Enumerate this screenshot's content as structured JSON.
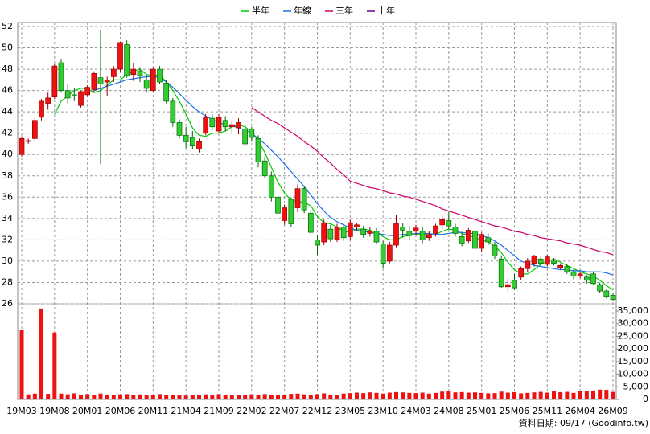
{
  "chart_data": {
    "type": "candlestick",
    "legend_position": "top",
    "grid": true,
    "source": "資料日期: 09/17  (Goodinfo.tw)",
    "categories": [
      "19M03",
      null,
      null,
      null,
      null,
      "19M08",
      null,
      null,
      null,
      null,
      "20M01",
      null,
      null,
      null,
      null,
      "20M06",
      null,
      null,
      null,
      null,
      "20M11",
      null,
      null,
      null,
      null,
      "21M04",
      null,
      null,
      null,
      null,
      "21M09",
      null,
      null,
      null,
      null,
      "22M02",
      null,
      null,
      null,
      null,
      "22M07",
      null,
      null,
      null,
      null,
      "22M12",
      null,
      null,
      null,
      null,
      "23M05",
      null,
      null,
      null,
      null,
      "23M10",
      null,
      null,
      null,
      null,
      "24M03",
      null,
      null,
      null,
      null,
      "24M08",
      null,
      null,
      null,
      null,
      "25M01",
      null,
      null,
      null,
      null,
      "25M06",
      null,
      null,
      null,
      null,
      "25M11",
      null,
      null,
      null,
      null,
      "26M04",
      null,
      null,
      null,
      null,
      "26M09"
    ],
    "ylim": [
      26,
      52
    ],
    "yticks": [
      26,
      28,
      30,
      32,
      34,
      36,
      38,
      40,
      42,
      44,
      46,
      48,
      50,
      52
    ],
    "ohlc": {
      "up_color": "#ee1111",
      "up_border": "#990000",
      "down_color": "#33cc33",
      "down_border": "#006600",
      "open": [
        40,
        41.3,
        41.5,
        43.5,
        44.8,
        45.4,
        48.6,
        46.0,
        45.6,
        44.6,
        45.6,
        46.1,
        47.2,
        46.8,
        47.3,
        48.0,
        50.3,
        47.5,
        47.8,
        47.0,
        46.0,
        48.0,
        46.7,
        45.0,
        43.0,
        41.8,
        41.6,
        40.5,
        42.0,
        43.4,
        42.2,
        43.2,
        42.6,
        42.5,
        42.4,
        42.4,
        41.5,
        39.4,
        38.0,
        36.0,
        33.8,
        35.8,
        35.0,
        36.8,
        34.5,
        32.0,
        31.8,
        33.0,
        32.0,
        33.2,
        32.3,
        33.2,
        33.0,
        32.6,
        32.8,
        31.6,
        30.0,
        31.5,
        33.2,
        32.8,
        32.8,
        32.8,
        32.2,
        32.6,
        33.4,
        33.8,
        33.2,
        32.3,
        31.9,
        32.8,
        31.2,
        32.2,
        31.5,
        30.2,
        27.6,
        28.2,
        28.5,
        29.3,
        29.8,
        30.2,
        29.7,
        30.0,
        29.4,
        29.5,
        29.0,
        28.6,
        28.5,
        28.8,
        27.8,
        27.2,
        26.8
      ],
      "high": [
        41.7,
        41.5,
        43.4,
        45.2,
        45.8,
        48.5,
        48.9,
        46.6,
        46.2,
        46.0,
        46.5,
        47.8,
        51.7,
        47.3,
        48.3,
        50.6,
        50.7,
        48.6,
        48.2,
        47.5,
        48.2,
        48.3,
        47.0,
        45.3,
        43.3,
        42.6,
        42.2,
        41.5,
        43.8,
        43.8,
        43.8,
        43.6,
        43.2,
        43.4,
        42.8,
        42.6,
        41.8,
        39.8,
        38.4,
        36.4,
        35.3,
        36.0,
        37.2,
        37.0,
        34.8,
        32.4,
        33.9,
        33.4,
        33.5,
        33.4,
        33.9,
        33.6,
        33.3,
        33.2,
        33.1,
        31.9,
        31.8,
        34.3,
        33.6,
        33.3,
        33.4,
        33.2,
        32.8,
        33.5,
        34.3,
        34.6,
        33.5,
        32.6,
        33.1,
        33.0,
        32.7,
        32.6,
        31.8,
        30.5,
        28.4,
        28.8,
        29.5,
        30.3,
        30.6,
        30.4,
        30.6,
        30.3,
        29.8,
        29.7,
        29.2,
        29.0,
        28.7,
        29.0,
        28.0,
        27.4,
        27.0
      ],
      "low": [
        39.8,
        41.0,
        41.3,
        43.2,
        44.2,
        45.2,
        45.8,
        44.8,
        45.0,
        44.4,
        45.4,
        45.8,
        39.1,
        45.5,
        46.8,
        47.8,
        47.2,
        46.9,
        46.8,
        45.8,
        45.8,
        46.6,
        44.8,
        42.6,
        41.5,
        40.6,
        40.5,
        40.2,
        41.8,
        42.3,
        42.0,
        42.2,
        42.0,
        41.9,
        40.8,
        41.2,
        38.8,
        37.8,
        35.6,
        34.2,
        33.4,
        33.2,
        34.6,
        34.5,
        32.4,
        30.6,
        31.5,
        31.8,
        31.8,
        31.9,
        32.0,
        32.8,
        32.2,
        32.3,
        31.6,
        29.4,
        29.8,
        31.3,
        32.2,
        32.0,
        32.4,
        31.7,
        31.9,
        32.3,
        33.0,
        33.0,
        32.3,
        31.4,
        31.7,
        30.9,
        30.9,
        31.5,
        30.2,
        27.5,
        27.2,
        27.3,
        28.2,
        29.0,
        29.5,
        29.6,
        29.5,
        29.6,
        29.2,
        28.8,
        28.3,
        28.4,
        27.9,
        27.8,
        27.0,
        26.5,
        26.3
      ],
      "close": [
        41.5,
        41.3,
        43.2,
        45.0,
        45.3,
        48.3,
        46.0,
        45.3,
        45.5,
        45.9,
        46.3,
        47.6,
        46.6,
        47.0,
        48.0,
        50.5,
        47.4,
        48.0,
        47.4,
        46.2,
        48.0,
        46.8,
        45.0,
        43.0,
        41.8,
        41.2,
        40.8,
        41.2,
        43.5,
        42.6,
        43.5,
        42.6,
        42.8,
        43.0,
        41.0,
        41.6,
        39.3,
        38.0,
        36.0,
        34.5,
        35.0,
        33.5,
        36.8,
        34.8,
        32.7,
        31.5,
        33.6,
        32.1,
        33.2,
        32.2,
        33.6,
        33.4,
        32.5,
        32.8,
        31.8,
        29.8,
        31.5,
        33.5,
        32.9,
        32.4,
        33.1,
        32.0,
        32.5,
        33.3,
        33.9,
        33.3,
        32.6,
        31.7,
        32.9,
        31.2,
        32.5,
        31.8,
        30.5,
        27.6,
        27.8,
        27.5,
        29.3,
        30.0,
        30.5,
        29.8,
        30.4,
        29.8,
        29.6,
        29.0,
        28.6,
        28.8,
        28.2,
        27.9,
        27.2,
        26.7,
        26.4
      ]
    },
    "series": [
      {
        "name": "半年",
        "color": "#00cc00",
        "values": [
          null,
          null,
          null,
          null,
          null,
          43.8,
          45,
          45.5,
          46,
          46.2,
          46.2,
          45.8,
          46,
          46.5,
          47,
          47,
          47.5,
          47.8,
          48,
          47.5,
          47.4,
          47.5,
          46.8,
          46,
          45,
          43.8,
          42.5,
          41.8,
          41.7,
          42,
          42,
          42.2,
          42.6,
          42.8,
          42.6,
          42.1,
          41.3,
          40.2,
          38.8,
          37.4,
          36.4,
          35.7,
          35.6,
          35.5,
          35.2,
          34.2,
          33.6,
          33.5,
          33.2,
          32.8,
          32.7,
          33,
          33,
          32.9,
          32.7,
          32.3,
          32,
          32,
          32.3,
          32.4,
          32.5,
          32.6,
          32.4,
          32.5,
          32.8,
          33,
          32.9,
          32.6,
          32.4,
          32.2,
          32,
          31.8,
          31.4,
          30.8,
          29.9,
          29.2,
          28.8,
          28.8,
          29.2,
          29.7,
          30,
          30.2,
          29.9,
          29.6,
          29.3,
          29,
          28.8,
          28.6,
          28.2,
          27.7,
          27.3
        ]
      },
      {
        "name": "年線",
        "color": "#1e6fe8",
        "values": [
          null,
          null,
          null,
          null,
          null,
          null,
          null,
          null,
          null,
          null,
          null,
          46,
          46.2,
          46.4,
          46.6,
          46.8,
          47,
          47.1,
          47.2,
          47.3,
          47.3,
          47.2,
          46.8,
          46.3,
          45.7,
          45.1,
          44.5,
          44,
          43.6,
          43.3,
          43,
          42.8,
          42.7,
          42.5,
          42.3,
          42,
          41.5,
          41,
          40.4,
          39.8,
          39.1,
          38.4,
          37.7,
          37,
          36.2,
          35.4,
          34.7,
          34.1,
          33.7,
          33.4,
          33.1,
          32.9,
          32.8,
          32.7,
          32.6,
          32.5,
          32.4,
          32.4,
          32.5,
          32.5,
          32.6,
          32.6,
          32.6,
          32.5,
          32.5,
          32.6,
          32.7,
          32.7,
          32.6,
          32.6,
          32.4,
          32.2,
          31.9,
          31.5,
          31,
          30.5,
          30,
          29.8,
          29.6,
          29.5,
          29.4,
          29.3,
          29.2,
          29.2,
          29.1,
          29.1,
          29,
          29,
          29,
          28.9,
          28.7
        ]
      },
      {
        "name": "三年",
        "color": "#cc0066",
        "values": [
          null,
          null,
          null,
          null,
          null,
          null,
          null,
          null,
          null,
          null,
          null,
          null,
          null,
          null,
          null,
          null,
          null,
          null,
          null,
          null,
          null,
          null,
          null,
          null,
          null,
          null,
          null,
          null,
          null,
          null,
          null,
          null,
          null,
          null,
          null,
          44.4,
          44.0,
          43.6,
          43.2,
          42.9,
          42.5,
          42.1,
          41.7,
          41.2,
          40.8,
          40.3,
          39.7,
          39.2,
          38.6,
          38.1,
          37.5,
          37.3,
          37.1,
          36.9,
          36.8,
          36.6,
          36.4,
          36.3,
          36.1,
          36.0,
          35.8,
          35.6,
          35.4,
          35.2,
          34.9,
          34.7,
          34.5,
          34.3,
          34.1,
          33.9,
          33.7,
          33.5,
          33.3,
          33.2,
          33.0,
          32.8,
          32.7,
          32.5,
          32.4,
          32.2,
          32.1,
          32.0,
          31.9,
          31.7,
          31.6,
          31.5,
          31.3,
          31.1,
          30.9,
          30.8,
          30.6
        ]
      },
      {
        "name": "十年",
        "color": "#660099",
        "values": [
          null,
          null,
          null,
          null,
          null,
          null,
          null,
          null,
          null,
          null,
          null,
          null,
          null,
          null,
          null,
          null,
          null,
          null,
          null,
          null,
          null,
          null,
          null,
          null,
          null,
          null,
          null,
          null,
          null,
          null,
          null,
          null,
          null,
          null,
          null,
          null,
          null,
          null,
          null,
          null,
          null,
          null,
          null,
          null,
          null,
          null,
          null,
          null,
          null,
          null,
          null,
          null,
          null,
          null,
          null,
          null,
          null,
          null,
          null,
          null,
          null,
          null,
          null,
          null,
          null,
          null,
          null,
          null,
          null,
          null,
          null,
          null,
          null,
          null,
          null,
          null,
          null,
          null,
          null,
          null,
          null,
          null,
          null,
          null,
          null,
          null,
          null,
          null,
          null,
          null,
          null
        ]
      }
    ],
    "volume": {
      "color": "#ee1111",
      "ylim": [
        0,
        35000
      ],
      "yticks": [
        0,
        {
          "value": 5000,
          "label": "5,000"
        },
        {
          "value": 10000,
          "label": "10,000"
        },
        {
          "value": 15000,
          "label": "15,000"
        },
        {
          "value": 20000,
          "label": "20,000"
        },
        {
          "value": 25000,
          "label": "25,000"
        },
        {
          "value": 30000,
          "label": "30,000"
        },
        {
          "value": 35000,
          "label": "35,000"
        }
      ],
      "values": [
        27500,
        2000,
        2300,
        36000,
        2200,
        26500,
        2300,
        2000,
        2400,
        1800,
        2100,
        1700,
        2300,
        1800,
        1700,
        2000,
        2100,
        1900,
        2000,
        1700,
        1600,
        2100,
        1800,
        1900,
        1700,
        1500,
        1800,
        1700,
        2000,
        1900,
        2100,
        1800,
        1700,
        1600,
        1900,
        2000,
        1800,
        2100,
        1900,
        1800,
        1700,
        2200,
        2300,
        2000,
        1800,
        2100,
        2400,
        1900,
        1600,
        2300,
        2500,
        2700,
        2500,
        2800,
        2600,
        2300,
        2700,
        2900,
        2800,
        2600,
        2500,
        2700,
        2300,
        2600,
        3100,
        3200,
        2800,
        2900,
        2700,
        2800,
        2600,
        2400,
        2500,
        3100,
        2700,
        2900,
        2400,
        2600,
        2800,
        3000,
        2700,
        3200,
        2900,
        3000,
        2600,
        3200,
        3300,
        3500,
        3900,
        3800,
        3000
      ]
    }
  }
}
